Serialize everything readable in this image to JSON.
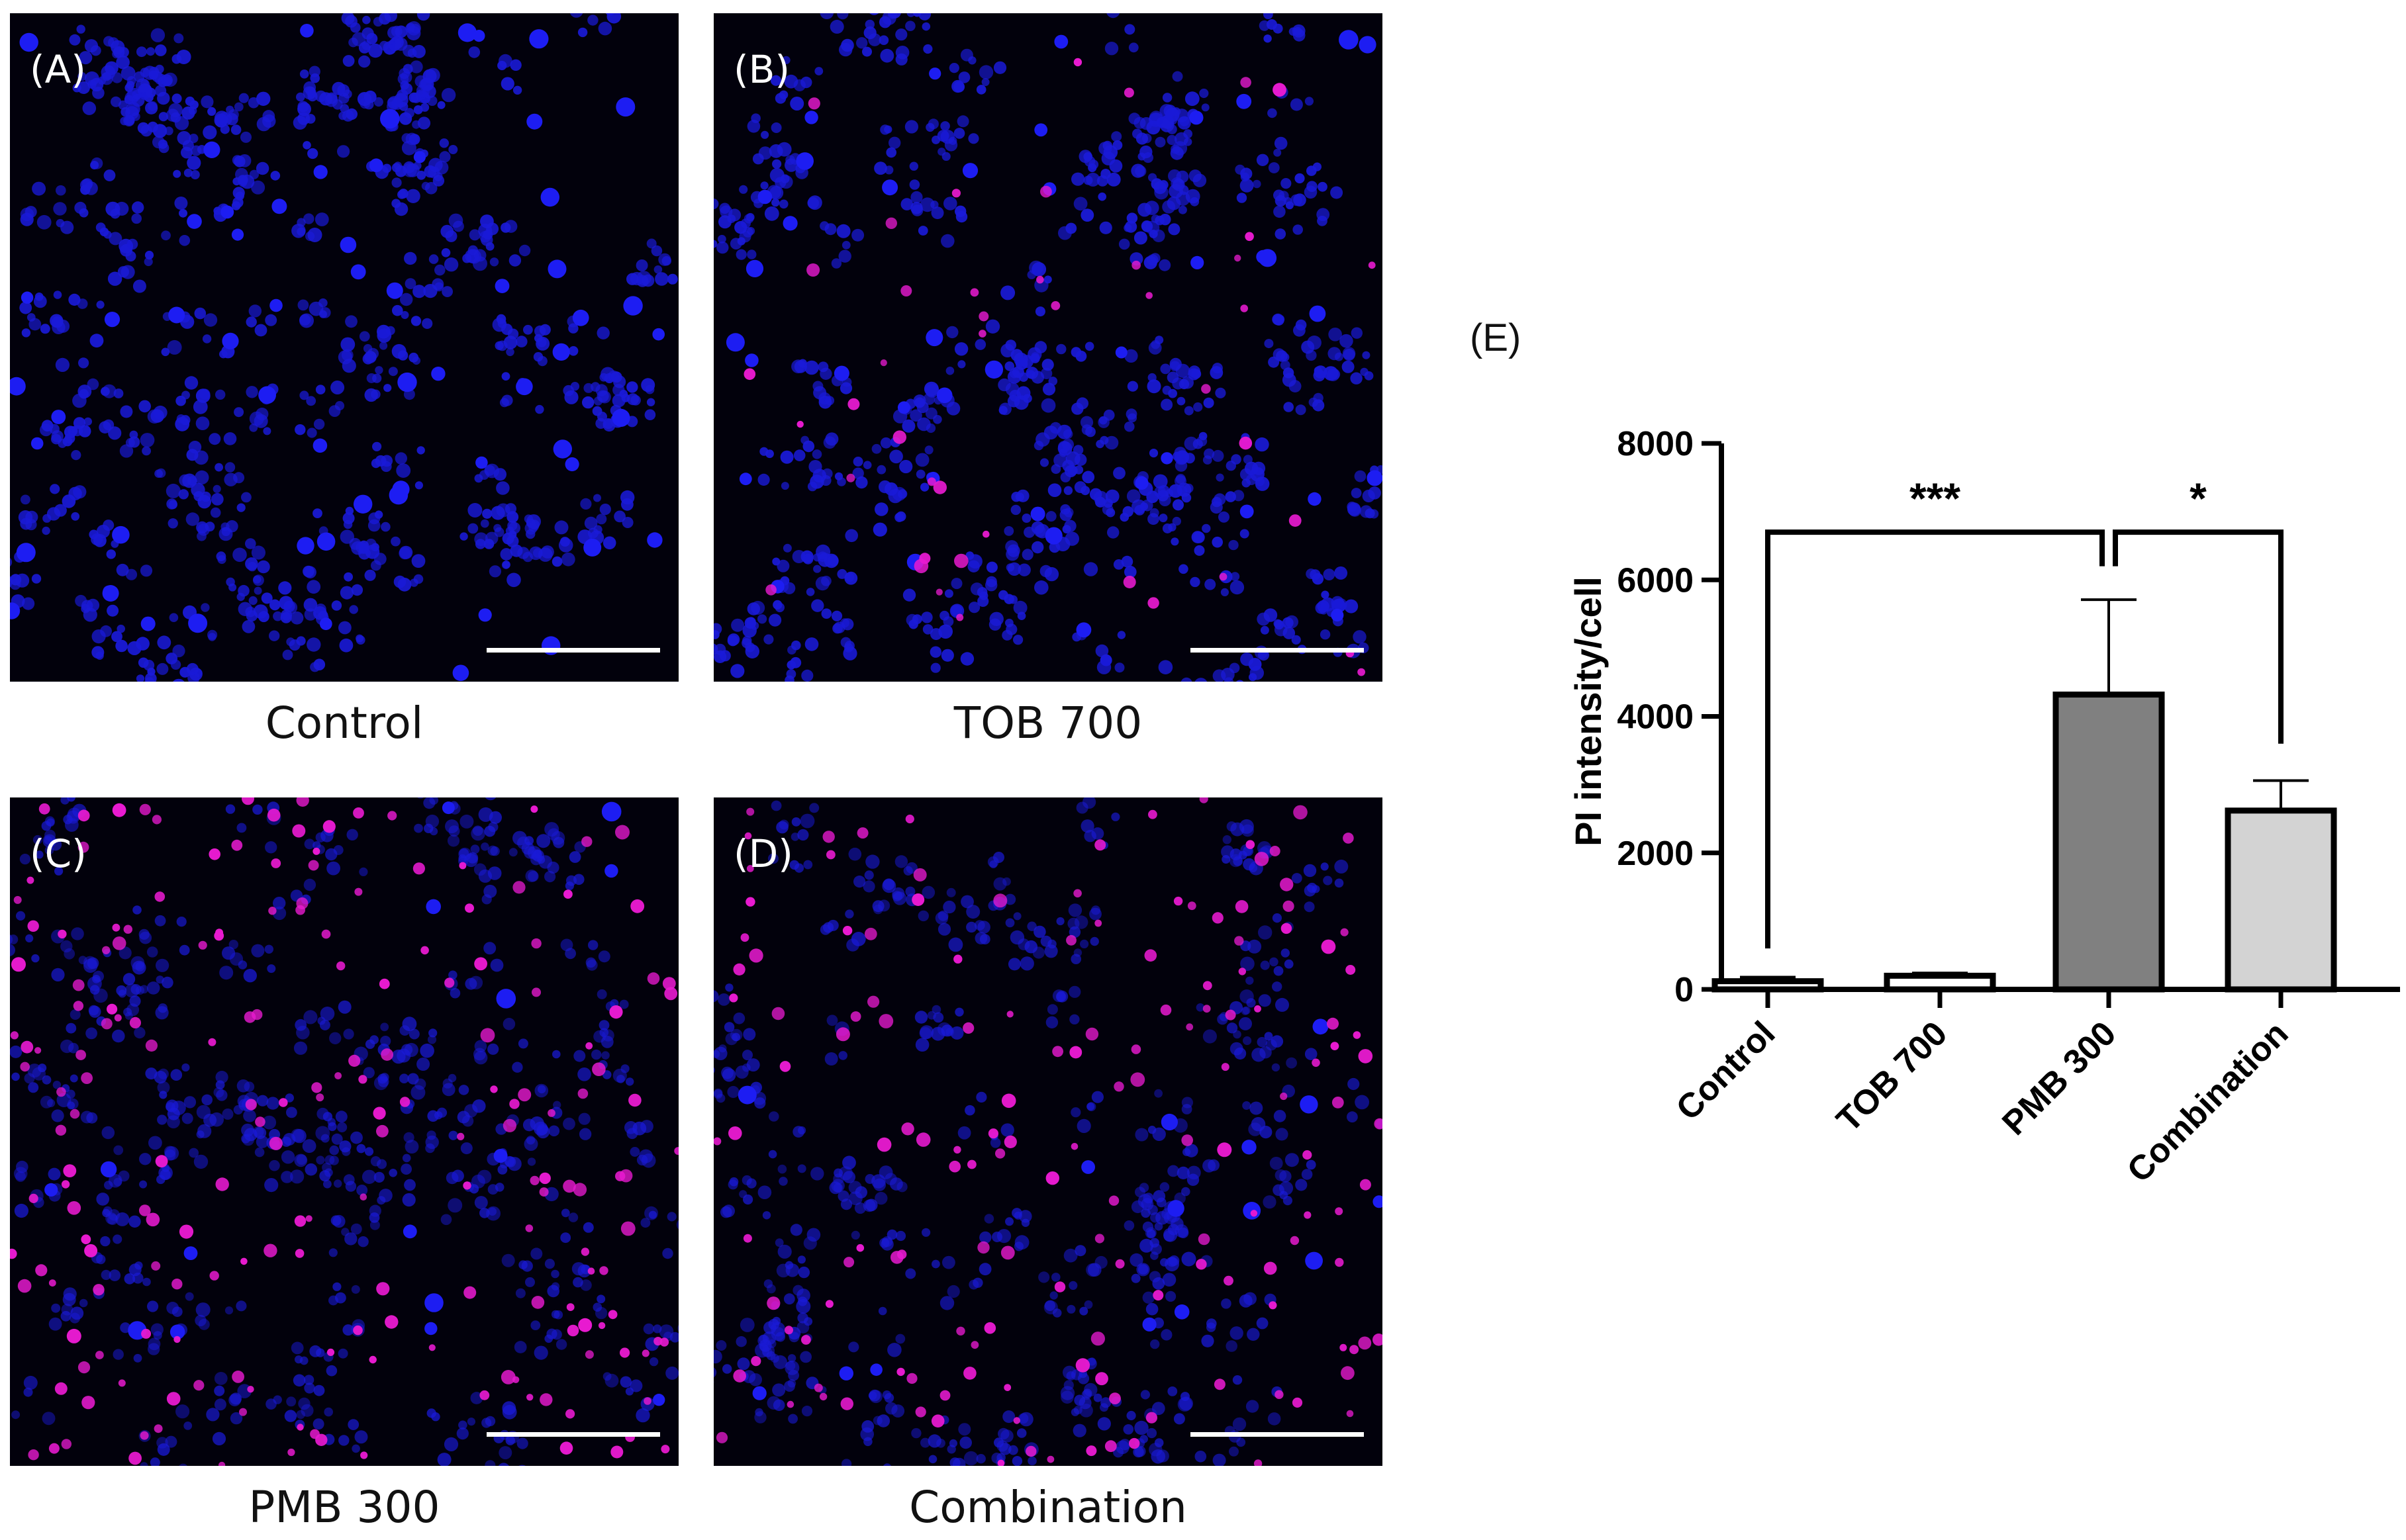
{
  "colors": {
    "panel_background": "#02010c",
    "nucleus_blue": "#1a1ad8",
    "pi_magenta": "#e81ad0",
    "bar_outline": "#000000"
  },
  "panels": [
    {
      "letter": "(A)",
      "caption": "Control",
      "pi_fraction": 0.0
    },
    {
      "letter": "(B)",
      "caption": "TOB 700",
      "pi_fraction": 0.08
    },
    {
      "letter": "(C)",
      "caption": "PMB 300",
      "pi_fraction": 0.35
    },
    {
      "letter": "(D)",
      "caption": "Combination",
      "pi_fraction": 0.28
    }
  ],
  "chart_data": {
    "type": "bar",
    "panel_label": "(E)",
    "categories": [
      "Control",
      "TOB 700",
      "PMB 300",
      "Combination"
    ],
    "values": [
      120,
      200,
      4320,
      2620
    ],
    "errors": [
      60,
      40,
      1390,
      440
    ],
    "bar_colors": [
      "#ffffff",
      "#ffffff",
      "#808080",
      "#d3d3d3"
    ],
    "ylabel": "PI intensity/cell",
    "xlabel": "",
    "ylim": [
      0,
      8000
    ],
    "yticks": [
      0,
      2000,
      4000,
      6000,
      8000
    ],
    "grid": false,
    "significance": [
      {
        "from": "Control",
        "to": "PMB 300",
        "label": "***"
      },
      {
        "from": "PMB 300",
        "to": "Combination",
        "label": "*"
      }
    ]
  }
}
